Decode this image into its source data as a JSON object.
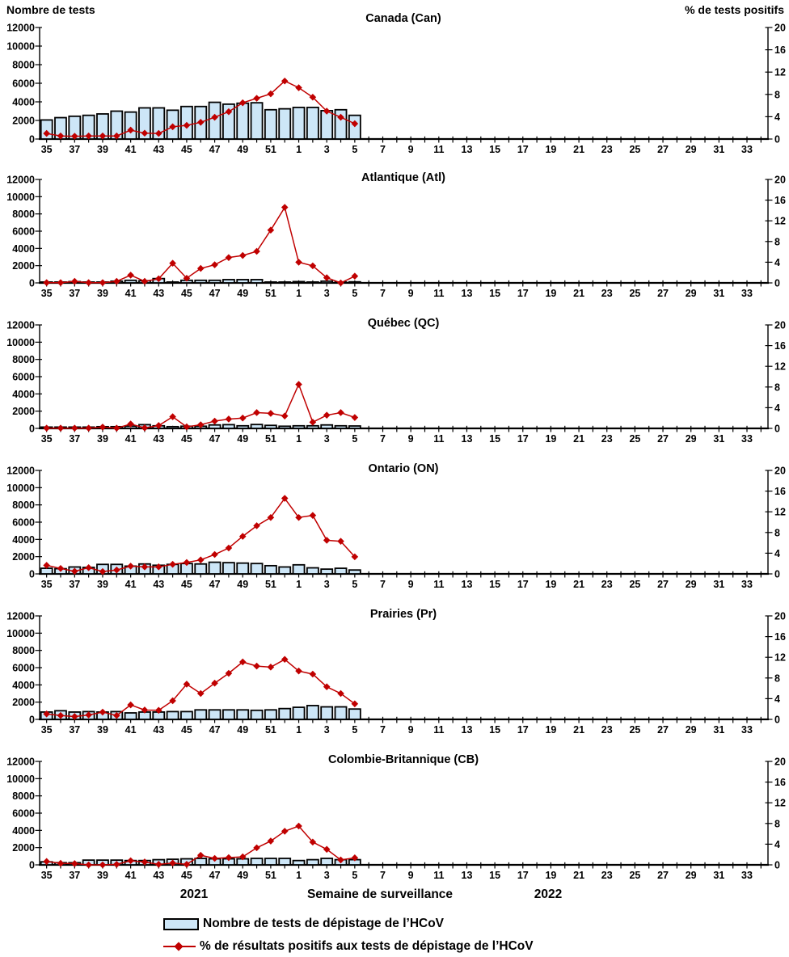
{
  "footer": {
    "year_left": "2021",
    "year_right": "2022"
  },
  "legend": [
    {
      "type": "bar",
      "label": "Nombre de tests de dépistage de l’HCoV"
    },
    {
      "type": "line",
      "label": "% de résultats positifs aux tests de dépistage de l’HCoV"
    }
  ],
  "colors": {
    "bar_fill": "#CDE6F7",
    "bar_stroke": "#000000",
    "line": "#C00000",
    "axis": "#000000",
    "text": "#000000"
  },
  "chart_data": {
    "type": "bar",
    "subtype": "combo-bar-line-small-multiples",
    "xlabel": "Semaine de surveillance",
    "x_categories": [
      "35",
      "36",
      "37",
      "38",
      "39",
      "40",
      "41",
      "42",
      "43",
      "44",
      "45",
      "46",
      "47",
      "48",
      "49",
      "50",
      "51",
      "52",
      "1",
      "2",
      "3",
      "4",
      "5",
      "6",
      "7",
      "8",
      "9",
      "10",
      "11",
      "12",
      "13",
      "14",
      "15",
      "16",
      "17",
      "18",
      "19",
      "20",
      "21",
      "22",
      "23",
      "24",
      "25",
      "26",
      "27",
      "28",
      "29",
      "30",
      "31",
      "32",
      "33",
      "34"
    ],
    "x_tick_label_rule": "odd-weeks-only",
    "left_axis": {
      "title": "Nombre de tests",
      "min": 0,
      "max": 12000,
      "step": 2000
    },
    "right_axis": {
      "title": "% de tests positifs",
      "min": 0,
      "max": 20,
      "step": 4
    },
    "grid": false,
    "panels": [
      {
        "title": "Canada (Can)",
        "tests": [
          2050,
          2300,
          2450,
          2550,
          2700,
          3000,
          2900,
          3350,
          3350,
          3100,
          3500,
          3500,
          3950,
          3750,
          3850,
          3900,
          3150,
          3250,
          3400,
          3400,
          3050,
          3150,
          2550
        ],
        "pct_positive": [
          1.0,
          0.55,
          0.5,
          0.55,
          0.55,
          0.55,
          1.6,
          1.05,
          1.0,
          2.2,
          2.45,
          3.0,
          3.9,
          4.9,
          6.5,
          7.3,
          8.1,
          10.4,
          9.2,
          7.5,
          5.0,
          3.9,
          2.75
        ]
      },
      {
        "title": "Atlantique (Atl)",
        "tests": [
          100,
          100,
          150,
          100,
          100,
          200,
          300,
          250,
          500,
          100,
          300,
          300,
          300,
          380,
          380,
          380,
          100,
          100,
          150,
          100,
          200,
          100,
          120
        ],
        "pct_positive": [
          0.05,
          0.05,
          0.3,
          0.05,
          0.05,
          0.3,
          1.5,
          0.3,
          0.8,
          3.8,
          0.9,
          2.8,
          3.5,
          4.9,
          5.3,
          6.1,
          10.2,
          14.6,
          4.0,
          3.3,
          1.0,
          0.0,
          1.3
        ]
      },
      {
        "title": "Québec (QC)",
        "tests": [
          150,
          150,
          150,
          150,
          200,
          200,
          250,
          430,
          300,
          200,
          250,
          250,
          400,
          430,
          300,
          450,
          350,
          250,
          300,
          300,
          400,
          300,
          280
        ],
        "pct_positive": [
          0.05,
          0.05,
          0.05,
          0.05,
          0.25,
          0.05,
          0.85,
          0.1,
          0.55,
          2.25,
          0.3,
          0.7,
          1.4,
          1.8,
          2.0,
          3.05,
          2.9,
          2.4,
          8.5,
          1.2,
          2.55,
          3.05,
          2.1
        ]
      },
      {
        "title": "Ontario (ON)",
        "tests": [
          650,
          600,
          800,
          750,
          1100,
          1100,
          900,
          1150,
          1000,
          1100,
          1200,
          1150,
          1350,
          1300,
          1250,
          1200,
          950,
          800,
          1050,
          700,
          550,
          650,
          450
        ],
        "pct_positive": [
          1.65,
          1.05,
          0.5,
          1.2,
          0.45,
          0.75,
          1.5,
          1.35,
          1.35,
          1.85,
          2.2,
          2.7,
          3.75,
          5.0,
          7.25,
          9.3,
          10.9,
          14.6,
          10.9,
          11.3,
          6.5,
          6.3,
          3.3
        ]
      },
      {
        "title": "Prairies (Pr)",
        "tests": [
          850,
          1000,
          850,
          900,
          850,
          900,
          750,
          850,
          850,
          900,
          900,
          1100,
          1100,
          1100,
          1100,
          1050,
          1100,
          1250,
          1400,
          1600,
          1450,
          1450,
          1200
        ],
        "pct_positive": [
          1.05,
          0.75,
          0.55,
          0.85,
          1.4,
          0.75,
          2.8,
          1.8,
          1.75,
          3.6,
          6.8,
          5.0,
          7.0,
          8.9,
          11.1,
          10.3,
          10.1,
          11.6,
          9.35,
          8.75,
          6.3,
          5.0,
          3.0
        ]
      },
      {
        "title": "Colombie-Britannique (CB)",
        "tests": [
          350,
          250,
          250,
          550,
          550,
          550,
          500,
          500,
          600,
          650,
          700,
          750,
          700,
          700,
          700,
          750,
          750,
          750,
          500,
          600,
          750,
          600,
          600
        ],
        "pct_positive": [
          0.65,
          0.3,
          0.25,
          0.0,
          0.0,
          0.1,
          0.8,
          0.55,
          0.1,
          0.35,
          0.1,
          1.85,
          1.25,
          1.4,
          1.55,
          3.3,
          4.6,
          6.5,
          7.5,
          4.4,
          3.0,
          0.95,
          1.35
        ]
      }
    ]
  }
}
